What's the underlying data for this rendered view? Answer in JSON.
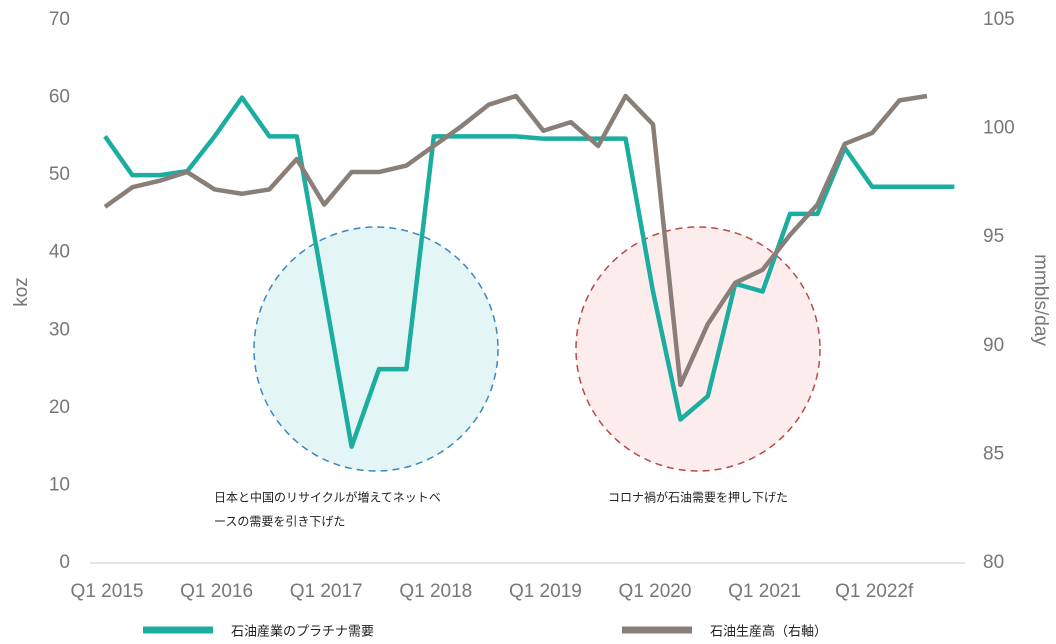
{
  "chart_data": {
    "type": "line",
    "categories": [
      "Q1 2015",
      null,
      null,
      null,
      "Q1 2016",
      null,
      null,
      null,
      "Q1 2017",
      null,
      null,
      null,
      "Q1 2018",
      null,
      null,
      null,
      "Q1 2019",
      null,
      null,
      null,
      "Q1 2020",
      null,
      null,
      null,
      "Q1 2021",
      null,
      null,
      null,
      "Q1 2022f",
      null,
      null,
      null
    ],
    "series": [
      {
        "name": "石油産業のプラチナ需要",
        "color": "#1aada0",
        "axis": "y",
        "values": [
          55,
          50,
          50,
          50.5,
          55,
          60,
          55,
          55,
          35,
          15,
          25,
          25,
          55,
          55,
          55,
          55,
          54.7,
          54.7,
          54.7,
          54.7,
          35,
          18.5,
          21.5,
          36,
          35,
          45,
          45,
          53.5,
          48.5,
          48.5,
          48.5,
          48.5
        ]
      },
      {
        "name": "石油生産高（右軸）",
        "color": "#8a7f78",
        "axis": "y2",
        "values": [
          96.4,
          97.3,
          97.6,
          98.0,
          97.2,
          97.0,
          97.2,
          98.6,
          96.5,
          98.0,
          98.0,
          98.3,
          99.2,
          100.1,
          101.1,
          101.5,
          99.9,
          100.3,
          99.2,
          101.5,
          100.2,
          88.2,
          91.0,
          92.9,
          93.5,
          95.1,
          96.5,
          99.3,
          99.8,
          101.3,
          101.5,
          null
        ]
      }
    ],
    "y_label": "koz",
    "y2_label": "mmbls/day",
    "ylim": [
      0,
      70
    ],
    "yticks": [
      0,
      10,
      20,
      30,
      40,
      50,
      60,
      70
    ],
    "y2lim": [
      80,
      105
    ],
    "y2ticks": [
      80,
      85,
      90,
      95,
      100,
      105
    ],
    "annotations": [
      "日本と中国のリサイクルが増えてネットベ",
      "ースの需要を引き下げた",
      "コロナ禍が石油需要を押し下げた"
    ]
  }
}
